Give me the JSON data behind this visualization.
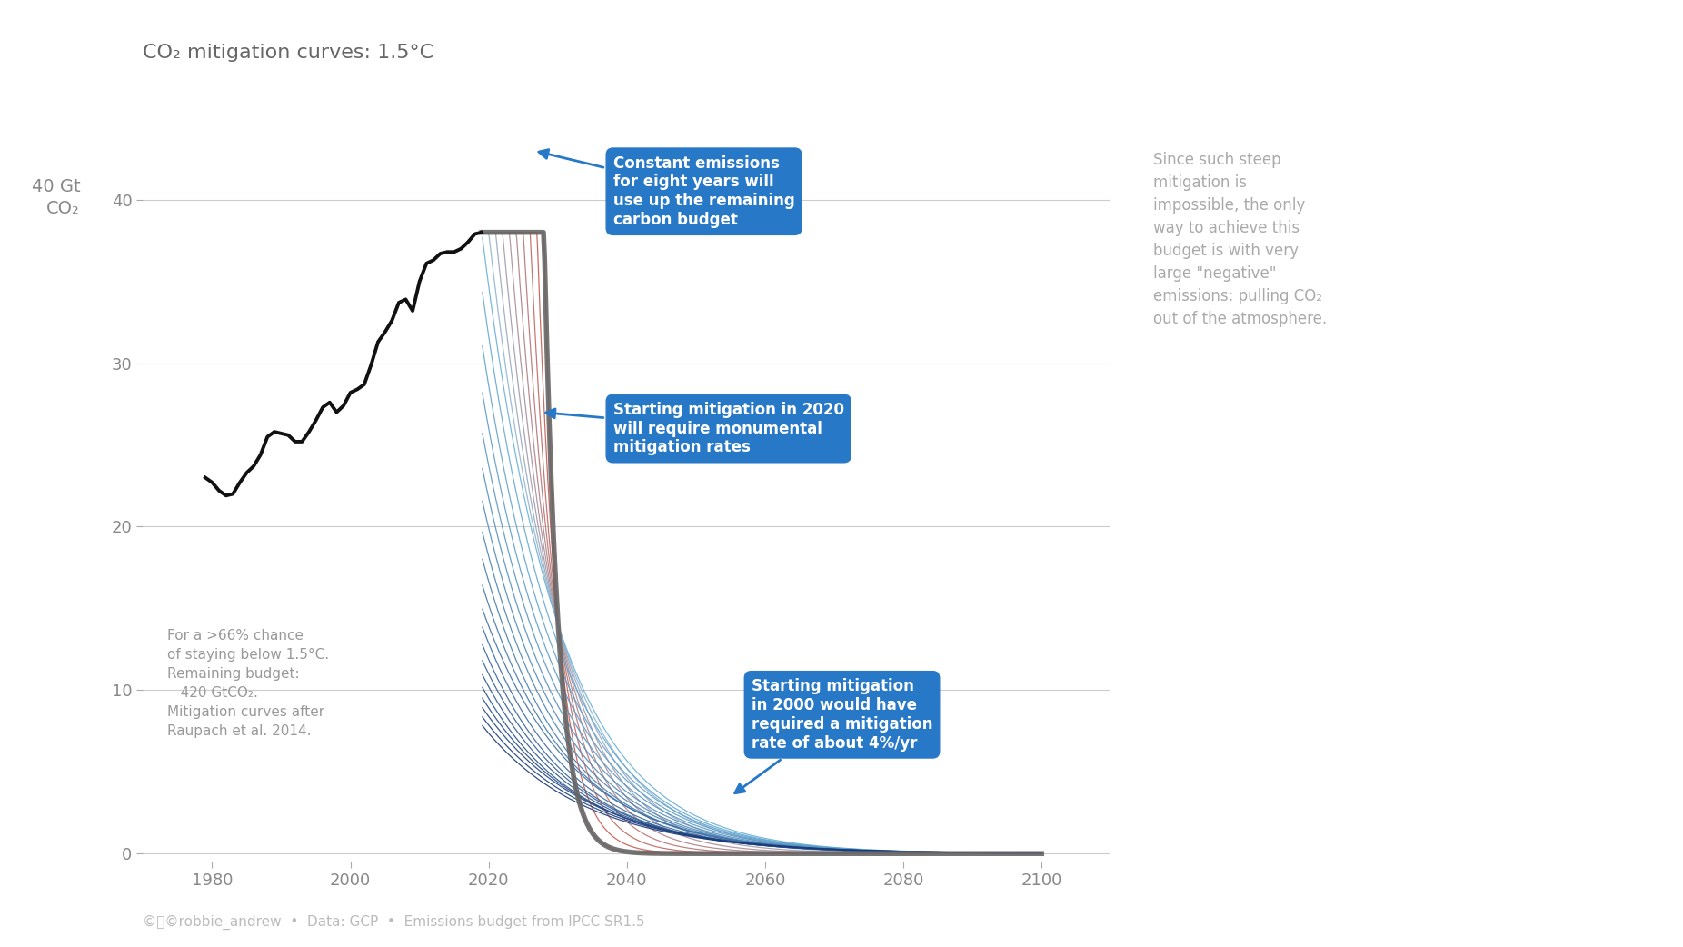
{
  "title": "CO₂ mitigation curves: 1.5°C",
  "yticks": [
    0,
    10,
    20,
    30,
    40
  ],
  "xticks": [
    1980,
    2000,
    2020,
    2040,
    2060,
    2080,
    2100
  ],
  "xlim": [
    1970,
    2110
  ],
  "ylim": [
    -0.5,
    47
  ],
  "background_color": "#ffffff",
  "plot_bg_color": "#ffffff",
  "historical_color": "#111111",
  "carbon_budget": 420,
  "annotation_bg_color": "#2878c8",
  "annotation_text_color": "#ffffff",
  "grid_color": "#cccccc",
  "axis_color": "#aaaaaa",
  "text_color": "#888888",
  "ylabel_text": "40 Gt\nCO₂",
  "side_text": "Since such steep\nmitigation is\nimpossible, the only\nway to achieve this\nbudget is with very\nlarge \"negative\"\nemissions: pulling CO₂\nout of the atmosphere.",
  "bottom_text": "©Ⓡ©robbie_andrew  •  Data: GCP  •  Emissions budget from IPCC SR1.5",
  "footnote_text": "For a >66% chance\nof staying below 1.5°C.\nRemaining budget:\n   420 GtCO₂.\nMitigation curves after\nRaupach et al. 2014.",
  "ann1_text": "Constant emissions\nfor eight years will\nuse up the remaining\ncarbon budget",
  "ann2_text": "Starting mitigation in 2020\nwill require monumental\nmitigation rates",
  "ann3_text": "Starting mitigation\nin 2000 would have\nrequired a mitigation\nrate of about 4%/yr",
  "hist_years": [
    1979,
    1980,
    1981,
    1982,
    1983,
    1984,
    1985,
    1986,
    1987,
    1988,
    1989,
    1990,
    1991,
    1992,
    1993,
    1994,
    1995,
    1996,
    1997,
    1998,
    1999,
    2000,
    2001,
    2002,
    2003,
    2004,
    2005,
    2006,
    2007,
    2008,
    2009,
    2010,
    2011,
    2012,
    2013,
    2014,
    2015,
    2016,
    2017,
    2018,
    2019
  ],
  "hist_emissions": [
    23.0,
    22.7,
    22.2,
    21.9,
    22.0,
    22.7,
    23.3,
    23.7,
    24.4,
    25.5,
    25.8,
    25.7,
    25.6,
    25.2,
    25.2,
    25.8,
    26.5,
    27.3,
    27.6,
    27.0,
    27.4,
    28.2,
    28.4,
    28.7,
    29.9,
    31.3,
    31.9,
    32.6,
    33.7,
    33.9,
    33.2,
    35.0,
    36.1,
    36.3,
    36.7,
    36.8,
    36.8,
    37.0,
    37.4,
    37.9,
    38.0
  ]
}
